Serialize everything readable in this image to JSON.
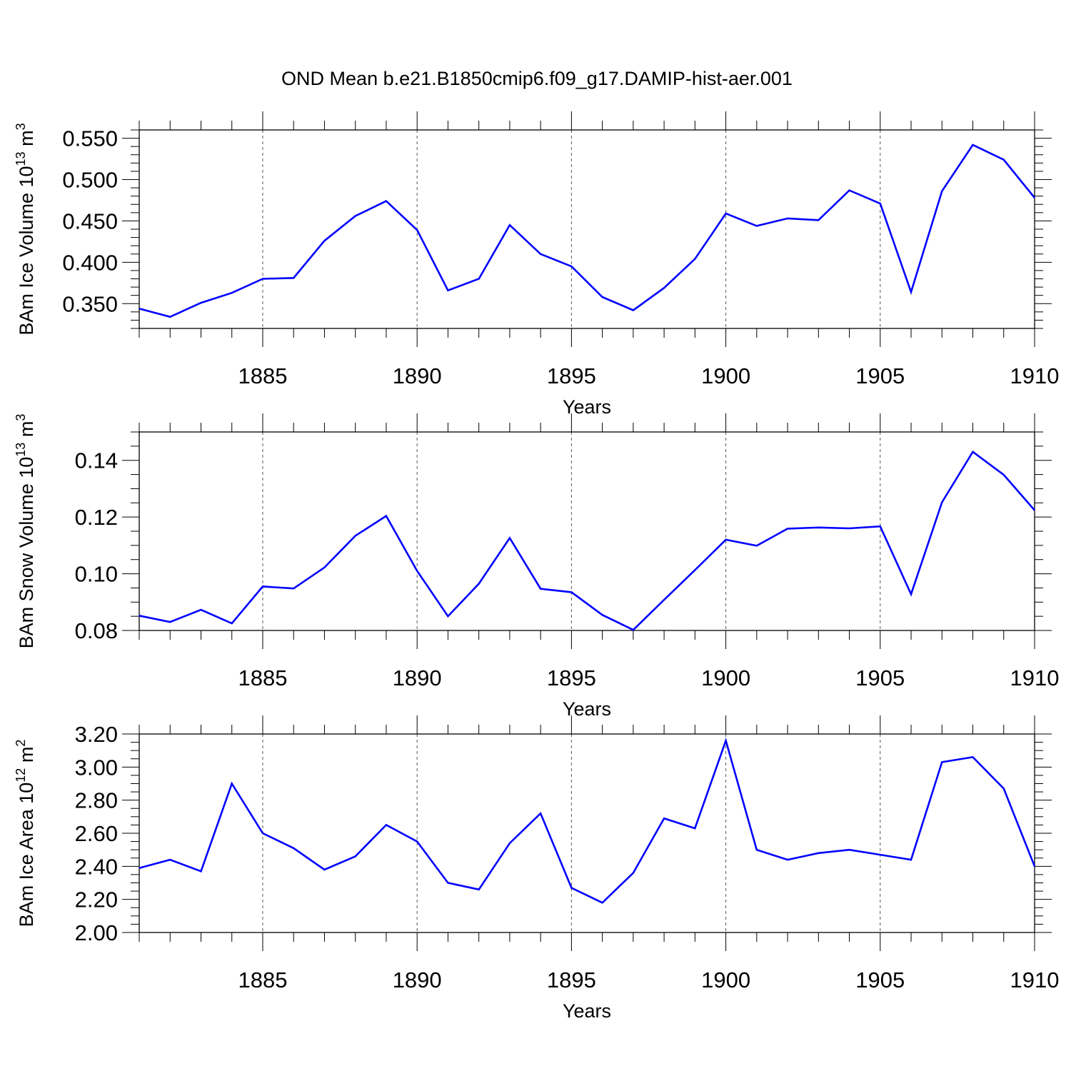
{
  "title": "OND Mean b.e21.B1850cmip6.f09_g17.DAMIP-hist-aer.001",
  "colors": {
    "line": "#0000ff",
    "axis": "#000000",
    "grid": "#555555"
  },
  "chart_data": [
    {
      "type": "line",
      "ylabel": "BAm Ice Volume",
      "unit_base": "10",
      "unit_exp": "13",
      "unit_m": "m",
      "unit_mexp": "3",
      "xlabel": "Years",
      "xlim": [
        1881,
        1910
      ],
      "ylim": [
        0.32,
        0.56
      ],
      "yticks": [
        0.35,
        0.4,
        0.45,
        0.5,
        0.55
      ],
      "yticklabels": [
        "0.350",
        "0.400",
        "0.450",
        "0.500",
        "0.550"
      ],
      "yminor": 0.01,
      "xticks": [
        1885,
        1890,
        1895,
        1900,
        1905,
        1910
      ],
      "xticklabels": [
        "1885",
        "1890",
        "1895",
        "1900",
        "1905",
        "1910"
      ],
      "x": [
        1881,
        1882,
        1883,
        1884,
        1885,
        1886,
        1887,
        1888,
        1889,
        1890,
        1891,
        1892,
        1893,
        1894,
        1895,
        1896,
        1897,
        1898,
        1899,
        1900,
        1901,
        1902,
        1903,
        1904,
        1905,
        1906,
        1907,
        1908,
        1909,
        1910
      ],
      "values": [
        0.344,
        0.334,
        0.351,
        0.363,
        0.38,
        0.381,
        0.426,
        0.456,
        0.474,
        0.439,
        0.366,
        0.38,
        0.445,
        0.41,
        0.395,
        0.358,
        0.342,
        0.369,
        0.404,
        0.459,
        0.444,
        0.453,
        0.451,
        0.487,
        0.471,
        0.364,
        0.486,
        0.542,
        0.524,
        0.478
      ]
    },
    {
      "type": "line",
      "ylabel": "BAm Snow Volume",
      "unit_base": "10",
      "unit_exp": "13",
      "unit_m": "m",
      "unit_mexp": "3",
      "xlabel": "Years",
      "xlim": [
        1881,
        1910
      ],
      "ylim": [
        0.08,
        0.15
      ],
      "yticks": [
        0.08,
        0.1,
        0.12,
        0.14
      ],
      "yticklabels": [
        "0.08",
        "0.10",
        "0.12",
        "0.14"
      ],
      "yminor": 0.005,
      "xticks": [
        1885,
        1890,
        1895,
        1900,
        1905,
        1910
      ],
      "xticklabels": [
        "1885",
        "1890",
        "1895",
        "1900",
        "1905",
        "1910"
      ],
      "x": [
        1881,
        1882,
        1883,
        1884,
        1885,
        1886,
        1887,
        1888,
        1889,
        1890,
        1891,
        1892,
        1893,
        1894,
        1895,
        1896,
        1897,
        1898,
        1899,
        1900,
        1901,
        1902,
        1903,
        1904,
        1905,
        1906,
        1907,
        1908,
        1909,
        1910
      ],
      "values": [
        0.0852,
        0.083,
        0.0873,
        0.0825,
        0.0955,
        0.0948,
        0.1022,
        0.1134,
        0.1204,
        0.101,
        0.085,
        0.0965,
        0.1126,
        0.0947,
        0.0935,
        0.0855,
        0.0802,
        0.0908,
        0.1013,
        0.112,
        0.1099,
        0.1159,
        0.1163,
        0.116,
        0.1167,
        0.0928,
        0.1252,
        0.143,
        0.1349,
        0.1224
      ]
    },
    {
      "type": "line",
      "ylabel": "BAm Ice Area",
      "unit_base": "10",
      "unit_exp": "12",
      "unit_m": "m",
      "unit_mexp": "2",
      "xlabel": "Years",
      "xlim": [
        1881,
        1910
      ],
      "ylim": [
        2.0,
        3.2
      ],
      "yticks": [
        2.0,
        2.2,
        2.4,
        2.6,
        2.8,
        3.0,
        3.2
      ],
      "yticklabels": [
        "2.00",
        "2.20",
        "2.40",
        "2.60",
        "2.80",
        "3.00",
        "3.20"
      ],
      "yminor": 0.05,
      "xticks": [
        1885,
        1890,
        1895,
        1900,
        1905,
        1910
      ],
      "xticklabels": [
        "1885",
        "1890",
        "1895",
        "1900",
        "1905",
        "1910"
      ],
      "x": [
        1881,
        1882,
        1883,
        1884,
        1885,
        1886,
        1887,
        1888,
        1889,
        1890,
        1891,
        1892,
        1893,
        1894,
        1895,
        1896,
        1897,
        1898,
        1899,
        1900,
        1901,
        1902,
        1903,
        1904,
        1905,
        1906,
        1907,
        1908,
        1909,
        1910
      ],
      "values": [
        2.39,
        2.44,
        2.37,
        2.9,
        2.6,
        2.51,
        2.38,
        2.46,
        2.65,
        2.55,
        2.3,
        2.26,
        2.54,
        2.72,
        2.27,
        2.18,
        2.36,
        2.69,
        2.63,
        3.16,
        2.5,
        2.44,
        2.48,
        2.5,
        2.47,
        2.44,
        3.03,
        3.06,
        2.87,
        2.4
      ]
    }
  ]
}
